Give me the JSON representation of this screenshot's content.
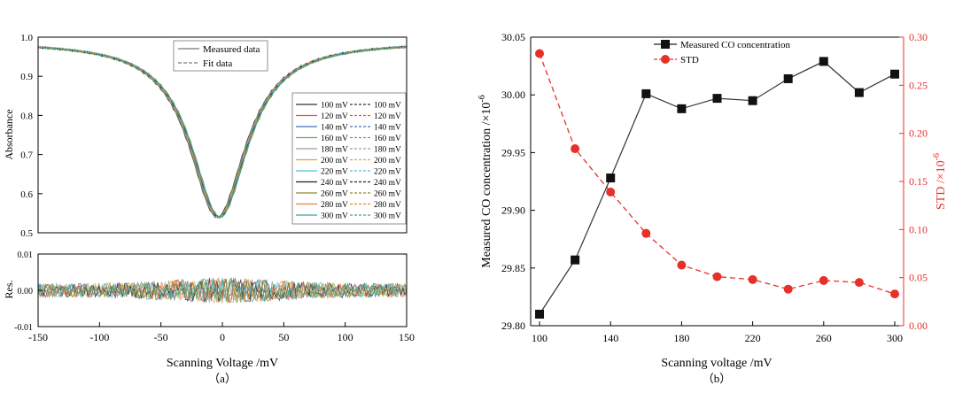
{
  "colors": {
    "series": [
      "#333333",
      "#e05b4b",
      "#3f6fc0",
      "#57b04f",
      "#9a9a9a",
      "#e2a33a",
      "#49c2d8",
      "#222222",
      "#8c8c2c",
      "#f07a3a",
      "#3aa39a"
    ],
    "conc": "#222222",
    "std": "#e8302a",
    "axis": "#000000"
  },
  "chart_data": [
    {
      "id": "a-top",
      "type": "line",
      "title": "",
      "xlabel": "",
      "ylabel": "Absorbance",
      "xlim": [
        -150,
        150
      ],
      "ylim": [
        0.5,
        1.0
      ],
      "yticks": [
        "0.5",
        "0.6",
        "0.7",
        "0.8",
        "0.9",
        "1.0"
      ],
      "legend_main": [
        "Measured data",
        "Fit data"
      ],
      "series_names": [
        "100 mV",
        "120 mV",
        "140 mV",
        "160 mV",
        "180 mV",
        "200 mV",
        "220 mV",
        "240 mV",
        "260 mV",
        "280 mV",
        "300 mV"
      ],
      "line_model": {
        "baseline": 0.99,
        "minimum": 0.54,
        "center": -3,
        "halfwidth": 28
      }
    },
    {
      "id": "a-bottom",
      "type": "line",
      "xlabel": "Scanning Voltage /mV",
      "ylabel": "Res.",
      "xlim": [
        -150,
        150
      ],
      "ylim": [
        -0.01,
        0.01
      ],
      "xticks": [
        "-150",
        "-100",
        "-50",
        "0",
        "50",
        "100",
        "150"
      ],
      "yticks": [
        "-0.01",
        "0.00",
        "0.01"
      ],
      "caption": "（a）",
      "residual_amplitude": 0.0035
    },
    {
      "id": "b",
      "type": "line",
      "xlabel": "Scanning voltage /mV",
      "ylabel_left": "Measured CO concentration /×10",
      "ylabel_left_sup": "-6",
      "ylabel_right": "STD /×10",
      "ylabel_right_sup": "-6",
      "caption": "（b）",
      "x": [
        100,
        120,
        140,
        160,
        180,
        200,
        220,
        240,
        260,
        280,
        300
      ],
      "xlim": [
        95,
        305
      ],
      "ylim_left": [
        29.8,
        30.05
      ],
      "ylim_right": [
        0.0,
        0.3
      ],
      "xticks": [
        "100",
        "140",
        "180",
        "220",
        "260",
        "300"
      ],
      "yticks_left": [
        "29.80",
        "29.85",
        "29.90",
        "29.95",
        "30.00",
        "30.05"
      ],
      "yticks_right": [
        "0.00",
        "0.05",
        "0.10",
        "0.15",
        "0.20",
        "0.25",
        "0.30"
      ],
      "series": [
        {
          "name": "Measured CO concentration",
          "axis": "left",
          "values": [
            29.81,
            29.857,
            29.928,
            30.001,
            29.988,
            29.997,
            29.995,
            30.014,
            30.029,
            30.002,
            30.018
          ]
        },
        {
          "name": "STD",
          "axis": "right",
          "values": [
            0.283,
            0.184,
            0.139,
            0.096,
            0.063,
            0.051,
            0.048,
            0.038,
            0.047,
            0.045,
            0.033
          ]
        }
      ]
    }
  ]
}
